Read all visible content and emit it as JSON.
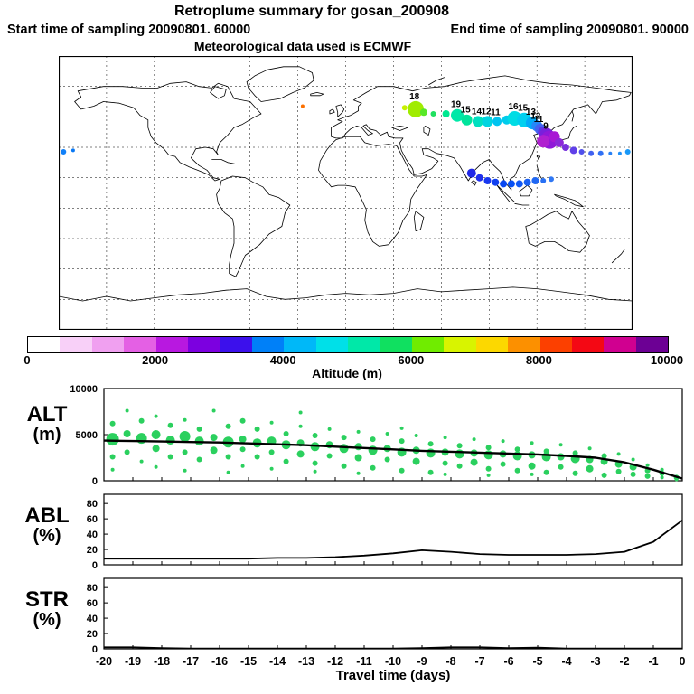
{
  "header": {
    "title": "Retroplume summary for gosan_200908",
    "start": "Start time of sampling 20090801. 60000",
    "end": "End time of sampling 20090801. 90000",
    "met": "Meteorological data used is ECMWF"
  },
  "colorbar": {
    "label": "Altitude (m)",
    "min": 0,
    "max": 10000,
    "ticks": [
      0,
      2000,
      4000,
      6000,
      8000,
      10000
    ],
    "colors": [
      "#ffffff",
      "#f8d0f8",
      "#f0a0f0",
      "#e460e4",
      "#b818e0",
      "#7c00e0",
      "#3c10ec",
      "#0080f8",
      "#00b8f8",
      "#00e0e8",
      "#00e8a8",
      "#10e060",
      "#70ec00",
      "#d8f400",
      "#fcd800",
      "#fc9000",
      "#fc4000",
      "#f40814",
      "#d00090",
      "#6c0094"
    ]
  },
  "chart_data": {
    "map": {
      "type": "scatter",
      "projection": "equirectangular",
      "lon_range": [
        -180,
        180
      ],
      "lat_range": [
        -90,
        90
      ],
      "grid_lon_step": 30,
      "grid_lat_step": 20,
      "points": [
        {
          "lon": 37,
          "lat": 56,
          "r": 3,
          "color": "#c8f000",
          "label": ""
        },
        {
          "lon": 44,
          "lat": 55,
          "r": 9,
          "color": "#a0ec00",
          "label": "18"
        },
        {
          "lon": 49,
          "lat": 53,
          "r": 4,
          "color": "#58e828",
          "label": ""
        },
        {
          "lon": 55,
          "lat": 52,
          "r": 3,
          "color": "#20e060",
          "label": ""
        },
        {
          "lon": 63,
          "lat": 52,
          "r": 4,
          "color": "#00e890",
          "label": ""
        },
        {
          "lon": 70,
          "lat": 51,
          "r": 7,
          "color": "#00e8a8",
          "label": "19"
        },
        {
          "lon": 76,
          "lat": 48,
          "r": 6,
          "color": "#00e49c",
          "label": "15"
        },
        {
          "lon": 83,
          "lat": 47,
          "r": 6,
          "color": "#00e0c0",
          "label": "14"
        },
        {
          "lon": 89,
          "lat": 47,
          "r": 6,
          "color": "#00d4e0",
          "label": "12"
        },
        {
          "lon": 95,
          "lat": 47,
          "r": 5,
          "color": "#00c4f0",
          "label": "11"
        },
        {
          "lon": 101,
          "lat": 48,
          "r": 5,
          "color": "#00ccec",
          "label": ""
        },
        {
          "lon": 106,
          "lat": 49,
          "r": 8,
          "color": "#00dce4",
          "label": "16"
        },
        {
          "lon": 112,
          "lat": 48,
          "r": 8,
          "color": "#00d0f0",
          "label": "15"
        },
        {
          "lon": 117,
          "lat": 46,
          "r": 7,
          "color": "#00acf8",
          "label": "13"
        },
        {
          "lon": 120,
          "lat": 44,
          "r": 6,
          "color": "#2488f8",
          "label": "12"
        },
        {
          "lon": 122,
          "lat": 42,
          "r": 6,
          "color": "#4462f0",
          "label": "11"
        },
        {
          "lon": 124,
          "lat": 40,
          "r": 6,
          "color": "#5a36e8",
          "label": ""
        },
        {
          "lon": 126,
          "lat": 38,
          "r": 8,
          "color": "#7820dc",
          "label": ""
        },
        {
          "lon": 128,
          "lat": 35,
          "r": 10,
          "color": "#9018d8",
          "label": "9"
        },
        {
          "lon": 124,
          "lat": 34,
          "r": 7,
          "color": "#b020d0",
          "label": ""
        },
        {
          "lon": 131,
          "lat": 37,
          "r": 6,
          "color": "#a818d4",
          "label": ""
        },
        {
          "lon": 134,
          "lat": 33,
          "r": 5,
          "color": "#8c28d8",
          "label": ""
        },
        {
          "lon": 138,
          "lat": 30,
          "r": 4,
          "color": "#7830dc",
          "label": ""
        },
        {
          "lon": 143,
          "lat": 28,
          "r": 4,
          "color": "#6040e8",
          "label": ""
        },
        {
          "lon": 148,
          "lat": 27,
          "r": 3,
          "color": "#5050ec",
          "label": ""
        },
        {
          "lon": 154,
          "lat": 26,
          "r": 3,
          "color": "#4060f0",
          "label": ""
        },
        {
          "lon": 160,
          "lat": 26,
          "r": 3,
          "color": "#3070f4",
          "label": ""
        },
        {
          "lon": 166,
          "lat": 26,
          "r": 2,
          "color": "#2880f4",
          "label": ""
        },
        {
          "lon": 172,
          "lat": 26,
          "r": 2,
          "color": "#2090f8",
          "label": ""
        },
        {
          "lon": 177,
          "lat": 27,
          "r": 3,
          "color": "#1898f8",
          "label": ""
        },
        {
          "lon": -177,
          "lat": 27,
          "r": 3,
          "color": "#1080f8",
          "label": ""
        },
        {
          "lon": -171,
          "lat": 28,
          "r": 2,
          "color": "#0878f4",
          "label": ""
        },
        {
          "lon": 79,
          "lat": 13,
          "r": 5,
          "color": "#2028e8",
          "label": ""
        },
        {
          "lon": 84,
          "lat": 10,
          "r": 4,
          "color": "#2030ec",
          "label": ""
        },
        {
          "lon": 89,
          "lat": 8,
          "r": 4,
          "color": "#1838f0",
          "label": ""
        },
        {
          "lon": 94,
          "lat": 7,
          "r": 4,
          "color": "#1040f0",
          "label": ""
        },
        {
          "lon": 99,
          "lat": 6,
          "r": 4,
          "color": "#0848f2",
          "label": ""
        },
        {
          "lon": 104,
          "lat": 6,
          "r": 4,
          "color": "#0850f4",
          "label": ""
        },
        {
          "lon": 109,
          "lat": 6,
          "r": 4,
          "color": "#1058f4",
          "label": ""
        },
        {
          "lon": 114,
          "lat": 7,
          "r": 4,
          "color": "#1860f4",
          "label": ""
        },
        {
          "lon": 119,
          "lat": 8,
          "r": 4,
          "color": "#2068f4",
          "label": ""
        },
        {
          "lon": 124,
          "lat": 8,
          "r": 3,
          "color": "#2870f4",
          "label": ""
        },
        {
          "lon": 129,
          "lat": 9,
          "r": 3,
          "color": "#3078f4",
          "label": ""
        },
        {
          "lon": -27,
          "lat": 57,
          "r": 2,
          "color": "#fc7000",
          "label": ""
        }
      ]
    },
    "alt_panel": {
      "type": "line+bubble",
      "label": "ALT",
      "unit": "(m)",
      "ylim": [
        0,
        10000
      ],
      "yticks": [
        0,
        5000,
        10000
      ],
      "line_color": "#000000",
      "bubble_color": "#2bd05e",
      "x": [
        -20,
        -19,
        -18,
        -17,
        -16,
        -15,
        -14,
        -13,
        -12,
        -11,
        -10,
        -9,
        -8,
        -7,
        -6,
        -5,
        -4,
        -3,
        -2,
        -1,
        0
      ],
      "values": [
        4350,
        4300,
        4250,
        4200,
        4150,
        4050,
        3950,
        3850,
        3700,
        3550,
        3400,
        3250,
        3150,
        3050,
        2950,
        2850,
        2700,
        2500,
        2000,
        1200,
        250
      ],
      "bubbles": [
        [
          -19.7,
          4500,
          7
        ],
        [
          -19.7,
          6200,
          3
        ],
        [
          -19.7,
          2600,
          3
        ],
        [
          -19.7,
          1200,
          2
        ],
        [
          -19.2,
          7600,
          2
        ],
        [
          -19.2,
          5100,
          4
        ],
        [
          -19.2,
          3100,
          3
        ],
        [
          -18.7,
          4600,
          6
        ],
        [
          -18.7,
          6500,
          3
        ],
        [
          -18.7,
          2100,
          2
        ],
        [
          -18.2,
          5000,
          5
        ],
        [
          -18.2,
          3500,
          4
        ],
        [
          -18.2,
          7000,
          2
        ],
        [
          -18.2,
          1500,
          2
        ],
        [
          -17.7,
          4400,
          5
        ],
        [
          -17.7,
          2600,
          3
        ],
        [
          -17.7,
          6000,
          3
        ],
        [
          -17.2,
          4800,
          6
        ],
        [
          -17.2,
          3100,
          3
        ],
        [
          -17.2,
          1100,
          2
        ],
        [
          -17.2,
          6600,
          2
        ],
        [
          -16.7,
          4300,
          5
        ],
        [
          -16.7,
          5600,
          3
        ],
        [
          -16.7,
          2300,
          3
        ],
        [
          -16.2,
          4700,
          4
        ],
        [
          -16.2,
          3300,
          4
        ],
        [
          -16.2,
          7600,
          2
        ],
        [
          -15.7,
          4200,
          6
        ],
        [
          -15.7,
          2600,
          3
        ],
        [
          -15.7,
          5900,
          3
        ],
        [
          -15.7,
          900,
          2
        ],
        [
          -15.2,
          4500,
          4
        ],
        [
          -15.2,
          3400,
          3
        ],
        [
          -15.2,
          1600,
          2
        ],
        [
          -15.2,
          6500,
          3
        ],
        [
          -14.7,
          4100,
          5
        ],
        [
          -14.7,
          5600,
          3
        ],
        [
          -14.7,
          2600,
          3
        ],
        [
          -14.2,
          4300,
          5
        ],
        [
          -14.2,
          3100,
          3
        ],
        [
          -14.2,
          6300,
          2
        ],
        [
          -14.2,
          1300,
          2
        ],
        [
          -13.7,
          3900,
          5
        ],
        [
          -13.7,
          2100,
          3
        ],
        [
          -13.7,
          5100,
          3
        ],
        [
          -13.2,
          4100,
          4
        ],
        [
          -13.2,
          2900,
          4
        ],
        [
          -13.2,
          5900,
          2
        ],
        [
          -13.2,
          7400,
          2
        ],
        [
          -12.7,
          3700,
          5
        ],
        [
          -12.7,
          1900,
          3
        ],
        [
          -12.7,
          4900,
          3
        ],
        [
          -12.7,
          1000,
          2
        ],
        [
          -12.2,
          3900,
          4
        ],
        [
          -12.2,
          2700,
          3
        ],
        [
          -12.2,
          5600,
          2
        ],
        [
          -11.7,
          3500,
          5
        ],
        [
          -11.7,
          4700,
          3
        ],
        [
          -11.7,
          1600,
          3
        ],
        [
          -11.2,
          3700,
          4
        ],
        [
          -11.2,
          2500,
          4
        ],
        [
          -11.2,
          5300,
          2
        ],
        [
          -11.2,
          800,
          2
        ],
        [
          -10.7,
          3300,
          5
        ],
        [
          -10.7,
          4500,
          3
        ],
        [
          -10.7,
          1400,
          3
        ],
        [
          -10.2,
          3500,
          4
        ],
        [
          -10.2,
          2300,
          3
        ],
        [
          -10.2,
          5100,
          2
        ],
        [
          -9.7,
          3100,
          5
        ],
        [
          -9.7,
          4300,
          3
        ],
        [
          -9.7,
          1100,
          3
        ],
        [
          -9.7,
          5700,
          2
        ],
        [
          -9.2,
          3300,
          4
        ],
        [
          -9.2,
          2100,
          4
        ],
        [
          -9.2,
          4900,
          2
        ],
        [
          -8.7,
          3000,
          5
        ],
        [
          -8.7,
          4000,
          3
        ],
        [
          -8.7,
          900,
          3
        ],
        [
          -8.2,
          3100,
          4
        ],
        [
          -8.2,
          1900,
          3
        ],
        [
          -8.2,
          4700,
          2
        ],
        [
          -8.2,
          700,
          2
        ],
        [
          -7.7,
          2900,
          5
        ],
        [
          -7.7,
          3800,
          3
        ],
        [
          -7.7,
          1600,
          3
        ],
        [
          -7.2,
          3000,
          4
        ],
        [
          -7.2,
          2000,
          4
        ],
        [
          -7.2,
          4500,
          2
        ],
        [
          -6.7,
          2800,
          5
        ],
        [
          -6.7,
          3600,
          3
        ],
        [
          -6.7,
          1300,
          3
        ],
        [
          -6.7,
          600,
          2
        ],
        [
          -6.2,
          2900,
          4
        ],
        [
          -6.2,
          1800,
          3
        ],
        [
          -6.2,
          4300,
          2
        ],
        [
          -5.7,
          2700,
          5
        ],
        [
          -5.7,
          3400,
          3
        ],
        [
          -5.7,
          1100,
          3
        ],
        [
          -5.2,
          2800,
          4
        ],
        [
          -5.2,
          1600,
          4
        ],
        [
          -5.2,
          4100,
          2
        ],
        [
          -5.2,
          700,
          2
        ],
        [
          -4.7,
          2600,
          5
        ],
        [
          -4.7,
          3200,
          3
        ],
        [
          -4.7,
          900,
          3
        ],
        [
          -4.2,
          2600,
          4
        ],
        [
          -4.2,
          1500,
          3
        ],
        [
          -4.2,
          3900,
          2
        ],
        [
          -3.7,
          2400,
          5
        ],
        [
          -3.7,
          3000,
          3
        ],
        [
          -3.7,
          800,
          3
        ],
        [
          -3.2,
          2300,
          4
        ],
        [
          -3.2,
          1300,
          4
        ],
        [
          -3.2,
          3500,
          2
        ],
        [
          -2.7,
          2100,
          4
        ],
        [
          -2.7,
          2700,
          3
        ],
        [
          -2.7,
          600,
          3
        ],
        [
          -2.2,
          1800,
          4
        ],
        [
          -2.2,
          1000,
          3
        ],
        [
          -2.2,
          2900,
          2
        ],
        [
          -1.7,
          1500,
          4
        ],
        [
          -1.7,
          700,
          3
        ],
        [
          -1.7,
          2300,
          2
        ],
        [
          -1.2,
          1100,
          3
        ],
        [
          -1.2,
          500,
          3
        ],
        [
          -1.2,
          1700,
          2
        ],
        [
          -0.7,
          800,
          3
        ],
        [
          -0.7,
          350,
          2
        ],
        [
          -0.7,
          1200,
          2
        ],
        [
          -0.2,
          350,
          3
        ],
        [
          -0.2,
          150,
          2
        ]
      ]
    },
    "abl_panel": {
      "type": "line",
      "label": "ABL",
      "unit": "(%)",
      "ylim": [
        0,
        92
      ],
      "yticks": [
        0,
        20,
        40,
        60,
        80
      ],
      "line_color": "#000000",
      "x": [
        -20,
        -19,
        -18,
        -17,
        -16,
        -15,
        -14,
        -13,
        -12,
        -11,
        -10,
        -9,
        -8,
        -7,
        -6,
        -5,
        -4,
        -3,
        -2,
        -1,
        0
      ],
      "values": [
        8,
        8,
        8,
        8,
        8,
        8,
        9,
        9,
        10,
        12,
        15,
        19,
        17,
        14,
        13,
        13,
        13,
        14,
        17,
        30,
        58
      ]
    },
    "str_panel": {
      "type": "line",
      "label": "STR",
      "unit": "(%)",
      "ylim": [
        0,
        92
      ],
      "yticks": [
        0,
        20,
        40,
        60,
        80
      ],
      "line_color": "#000000",
      "x": [
        -20,
        -19,
        -18,
        -17,
        -16,
        -15,
        -14,
        -13,
        -12,
        -11,
        -10,
        -9,
        -8,
        -7,
        -6,
        -5,
        -4,
        -3,
        -2,
        -1,
        0
      ],
      "values": [
        2,
        2,
        1,
        0.5,
        0.5,
        0.5,
        0.5,
        0.5,
        0.5,
        0.5,
        0.5,
        1,
        2,
        2,
        1,
        1.5,
        0.5,
        0.5,
        0.5,
        0.5,
        0.5
      ]
    },
    "x_axis": {
      "label": "Travel time (days)",
      "range": [
        -20,
        0
      ],
      "ticks": [
        -20,
        -19,
        -18,
        -17,
        -16,
        -15,
        -14,
        -13,
        -12,
        -11,
        -10,
        -9,
        -8,
        -7,
        -6,
        -5,
        -4,
        -3,
        -2,
        -1,
        0
      ]
    }
  }
}
